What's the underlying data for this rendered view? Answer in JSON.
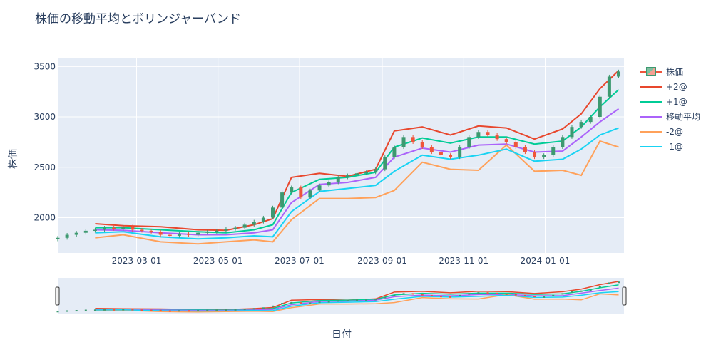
{
  "title": "株価の移動平均とボリンジャーバンド",
  "xlabel": "日付",
  "ylabel": "株価",
  "colors": {
    "bg": "#e5ecf6",
    "up": "#3d9970",
    "down": "#ef553b",
    "plus2": "#e8472d",
    "plus1": "#00cc96",
    "ma": "#ab63fa",
    "minus2": "#ffa15a",
    "minus1": "#19d3f3"
  },
  "chart_data": {
    "type": "line",
    "title": "株価の移動平均とボリンジャーバンド",
    "xlabel": "日付",
    "ylabel": "株価",
    "x_ticks": [
      "2023-03-01",
      "2023-05-01",
      "2023-07-01",
      "2023-09-01",
      "2023-11-01",
      "2024-01-01"
    ],
    "y_ticks": [
      2000,
      2500,
      3000,
      3500
    ],
    "xlim": [
      "2023-01-01",
      "2024-02-29"
    ],
    "ylim": [
      1650,
      3580
    ],
    "grid": true,
    "legend_position": "right",
    "rangeslider": true,
    "candlestick": {
      "name": "株価",
      "dates": [
        "2023-01-01",
        "2023-01-08",
        "2023-01-15",
        "2023-01-22",
        "2023-01-29",
        "2023-02-05",
        "2023-02-12",
        "2023-02-19",
        "2023-02-26",
        "2023-03-05",
        "2023-03-12",
        "2023-03-19",
        "2023-03-26",
        "2023-04-02",
        "2023-04-09",
        "2023-04-16",
        "2023-04-23",
        "2023-04-30",
        "2023-05-07",
        "2023-05-14",
        "2023-05-21",
        "2023-05-28",
        "2023-06-04",
        "2023-06-11",
        "2023-06-18",
        "2023-06-25",
        "2023-07-02",
        "2023-07-09",
        "2023-07-16",
        "2023-07-23",
        "2023-07-30",
        "2023-08-06",
        "2023-08-13",
        "2023-08-20",
        "2023-08-27",
        "2023-09-03",
        "2023-09-10",
        "2023-09-17",
        "2023-09-24",
        "2023-10-01",
        "2023-10-08",
        "2023-10-15",
        "2023-10-22",
        "2023-10-29",
        "2023-11-05",
        "2023-11-12",
        "2023-11-19",
        "2023-11-26",
        "2023-12-03",
        "2023-12-10",
        "2023-12-17",
        "2023-12-24",
        "2023-12-31",
        "2024-01-07",
        "2024-01-14",
        "2024-01-21",
        "2024-01-28",
        "2024-02-04",
        "2024-02-11",
        "2024-02-18",
        "2024-02-25"
      ],
      "close": [
        1800,
        1830,
        1850,
        1870,
        1880,
        1900,
        1890,
        1910,
        1880,
        1870,
        1860,
        1830,
        1820,
        1840,
        1830,
        1850,
        1860,
        1870,
        1890,
        1900,
        1930,
        1960,
        2000,
        2100,
        2250,
        2300,
        2200,
        2270,
        2320,
        2350,
        2400,
        2420,
        2440,
        2450,
        2480,
        2600,
        2700,
        2800,
        2750,
        2700,
        2650,
        2620,
        2600,
        2700,
        2800,
        2850,
        2820,
        2780,
        2750,
        2700,
        2650,
        2600,
        2620,
        2700,
        2800,
        2900,
        2950,
        3000,
        3200,
        3400,
        3450
      ]
    },
    "series": [
      {
        "name": "+2σ",
        "dates": [
          "2023-01-29",
          "2023-02-19",
          "2023-03-19",
          "2023-04-16",
          "2023-05-07",
          "2023-05-28",
          "2023-06-11",
          "2023-06-25",
          "2023-07-16",
          "2023-08-06",
          "2023-08-27",
          "2023-09-10",
          "2023-10-01",
          "2023-10-22",
          "2023-11-12",
          "2023-12-03",
          "2023-12-24",
          "2024-01-14",
          "2024-01-28",
          "2024-02-11",
          "2024-02-25"
        ],
        "values": [
          1940,
          1920,
          1910,
          1880,
          1875,
          1930,
          1990,
          2400,
          2440,
          2410,
          2480,
          2860,
          2900,
          2820,
          2910,
          2890,
          2780,
          2880,
          3030,
          3280,
          3460
        ]
      },
      {
        "name": "+1σ",
        "dates": [
          "2023-01-29",
          "2023-02-19",
          "2023-03-19",
          "2023-04-16",
          "2023-05-07",
          "2023-05-28",
          "2023-06-11",
          "2023-06-25",
          "2023-07-16",
          "2023-08-06",
          "2023-08-27",
          "2023-09-10",
          "2023-10-01",
          "2023-10-22",
          "2023-11-12",
          "2023-12-03",
          "2023-12-24",
          "2024-01-14",
          "2024-01-28",
          "2024-02-11",
          "2024-02-25"
        ],
        "values": [
          1900,
          1900,
          1880,
          1860,
          1850,
          1880,
          1930,
          2250,
          2380,
          2400,
          2450,
          2700,
          2790,
          2740,
          2800,
          2800,
          2730,
          2760,
          2900,
          3100,
          3270
        ]
      },
      {
        "name": "移動平均",
        "dates": [
          "2023-01-29",
          "2023-02-19",
          "2023-03-19",
          "2023-04-16",
          "2023-05-07",
          "2023-05-28",
          "2023-06-11",
          "2023-06-25",
          "2023-07-16",
          "2023-08-06",
          "2023-08-27",
          "2023-09-10",
          "2023-10-01",
          "2023-10-22",
          "2023-11-12",
          "2023-12-03",
          "2023-12-24",
          "2024-01-14",
          "2024-01-28",
          "2024-02-11",
          "2024-02-25"
        ],
        "values": [
          1880,
          1875,
          1850,
          1830,
          1830,
          1850,
          1880,
          2150,
          2330,
          2350,
          2400,
          2600,
          2690,
          2650,
          2720,
          2730,
          2650,
          2660,
          2800,
          2950,
          3080
        ]
      },
      {
        "name": "-2σ",
        "dates": [
          "2023-01-29",
          "2023-02-19",
          "2023-03-19",
          "2023-04-16",
          "2023-05-07",
          "2023-05-28",
          "2023-06-11",
          "2023-06-25",
          "2023-07-16",
          "2023-08-06",
          "2023-08-27",
          "2023-09-10",
          "2023-10-01",
          "2023-10-22",
          "2023-11-12",
          "2023-12-03",
          "2023-12-24",
          "2024-01-14",
          "2024-01-28",
          "2024-02-11",
          "2024-02-25"
        ],
        "values": [
          1800,
          1830,
          1760,
          1740,
          1760,
          1780,
          1760,
          1980,
          2190,
          2190,
          2200,
          2270,
          2550,
          2480,
          2470,
          2720,
          2460,
          2470,
          2420,
          2760,
          2700
        ]
      },
      {
        "name": "-1σ",
        "dates": [
          "2023-01-29",
          "2023-02-19",
          "2023-03-19",
          "2023-04-16",
          "2023-05-07",
          "2023-05-28",
          "2023-06-11",
          "2023-06-25",
          "2023-07-16",
          "2023-08-06",
          "2023-08-27",
          "2023-09-10",
          "2023-10-01",
          "2023-10-22",
          "2023-11-12",
          "2023-12-03",
          "2023-12-24",
          "2024-01-14",
          "2024-01-28",
          "2024-02-11",
          "2024-02-25"
        ],
        "values": [
          1850,
          1860,
          1810,
          1790,
          1800,
          1820,
          1810,
          2060,
          2260,
          2290,
          2320,
          2460,
          2620,
          2580,
          2620,
          2680,
          2560,
          2580,
          2680,
          2820,
          2890
        ]
      }
    ]
  },
  "legend": [
    {
      "label": "株価",
      "kind": "candle"
    },
    {
      "label": "+2@",
      "kind": "line",
      "color": "#e8472d"
    },
    {
      "label": "+1@",
      "kind": "line",
      "color": "#00cc96"
    },
    {
      "label": "移動平均",
      "kind": "line",
      "color": "#ab63fa"
    },
    {
      "label": "-2@",
      "kind": "line",
      "color": "#ffa15a"
    },
    {
      "label": "-1@",
      "kind": "line",
      "color": "#19d3f3"
    }
  ]
}
